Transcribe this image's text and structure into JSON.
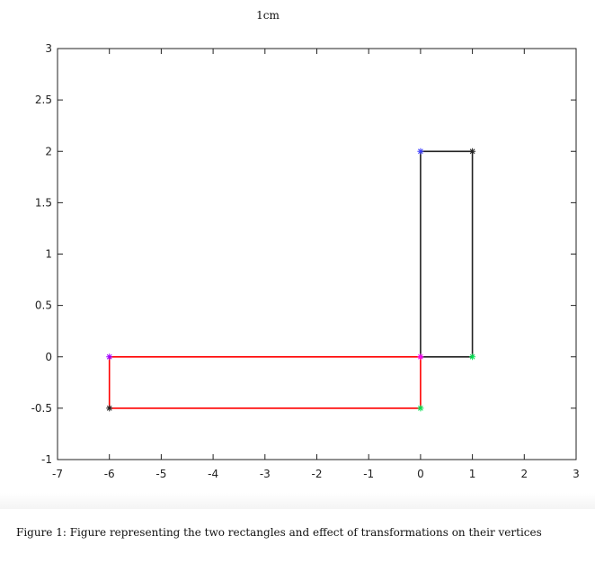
{
  "page": {
    "top_label": "1cm",
    "caption": "Figure 1: Figure representing the two rectangles and effect of transformations on their vertices"
  },
  "chart_data": {
    "type": "line",
    "title": "",
    "xlabel": "",
    "ylabel": "",
    "xlim": [
      -7,
      3
    ],
    "ylim": [
      -1,
      3
    ],
    "xticks": [
      -7,
      -6,
      -5,
      -4,
      -3,
      -2,
      -1,
      0,
      1,
      2,
      3
    ],
    "yticks": [
      -1,
      -0.5,
      0,
      0.5,
      1,
      1.5,
      2,
      2.5,
      3
    ],
    "xtick_labels": [
      "-7",
      "-6",
      "-5",
      "-4",
      "-3",
      "-2",
      "-1",
      "0",
      "1",
      "2",
      "3"
    ],
    "ytick_labels": [
      "-1",
      "-0.5",
      "0",
      "0.5",
      "1",
      "1.5",
      "2",
      "2.5",
      "3"
    ],
    "grid": false,
    "box": true,
    "series": [
      {
        "color": "#ff0000",
        "closed": true,
        "x": [
          -6,
          0,
          0,
          -6
        ],
        "y": [
          0,
          0,
          -0.5,
          -0.5
        ]
      },
      {
        "color": "#222222",
        "closed": true,
        "x": [
          0,
          1,
          1,
          0
        ],
        "y": [
          2,
          2,
          0,
          0
        ]
      }
    ],
    "vertex_markers": [
      {
        "x": -6,
        "y": 0,
        "color": "#a000ff"
      },
      {
        "x": 0,
        "y": 0,
        "color": "#ff00ff"
      },
      {
        "x": 0,
        "y": -0.5,
        "color": "#00e050"
      },
      {
        "x": -6,
        "y": -0.5,
        "color": "#222222"
      },
      {
        "x": 0,
        "y": 2,
        "color": "#3f3fff"
      },
      {
        "x": 1,
        "y": 2,
        "color": "#222222"
      },
      {
        "x": 1,
        "y": 0,
        "color": "#00e050"
      }
    ]
  }
}
